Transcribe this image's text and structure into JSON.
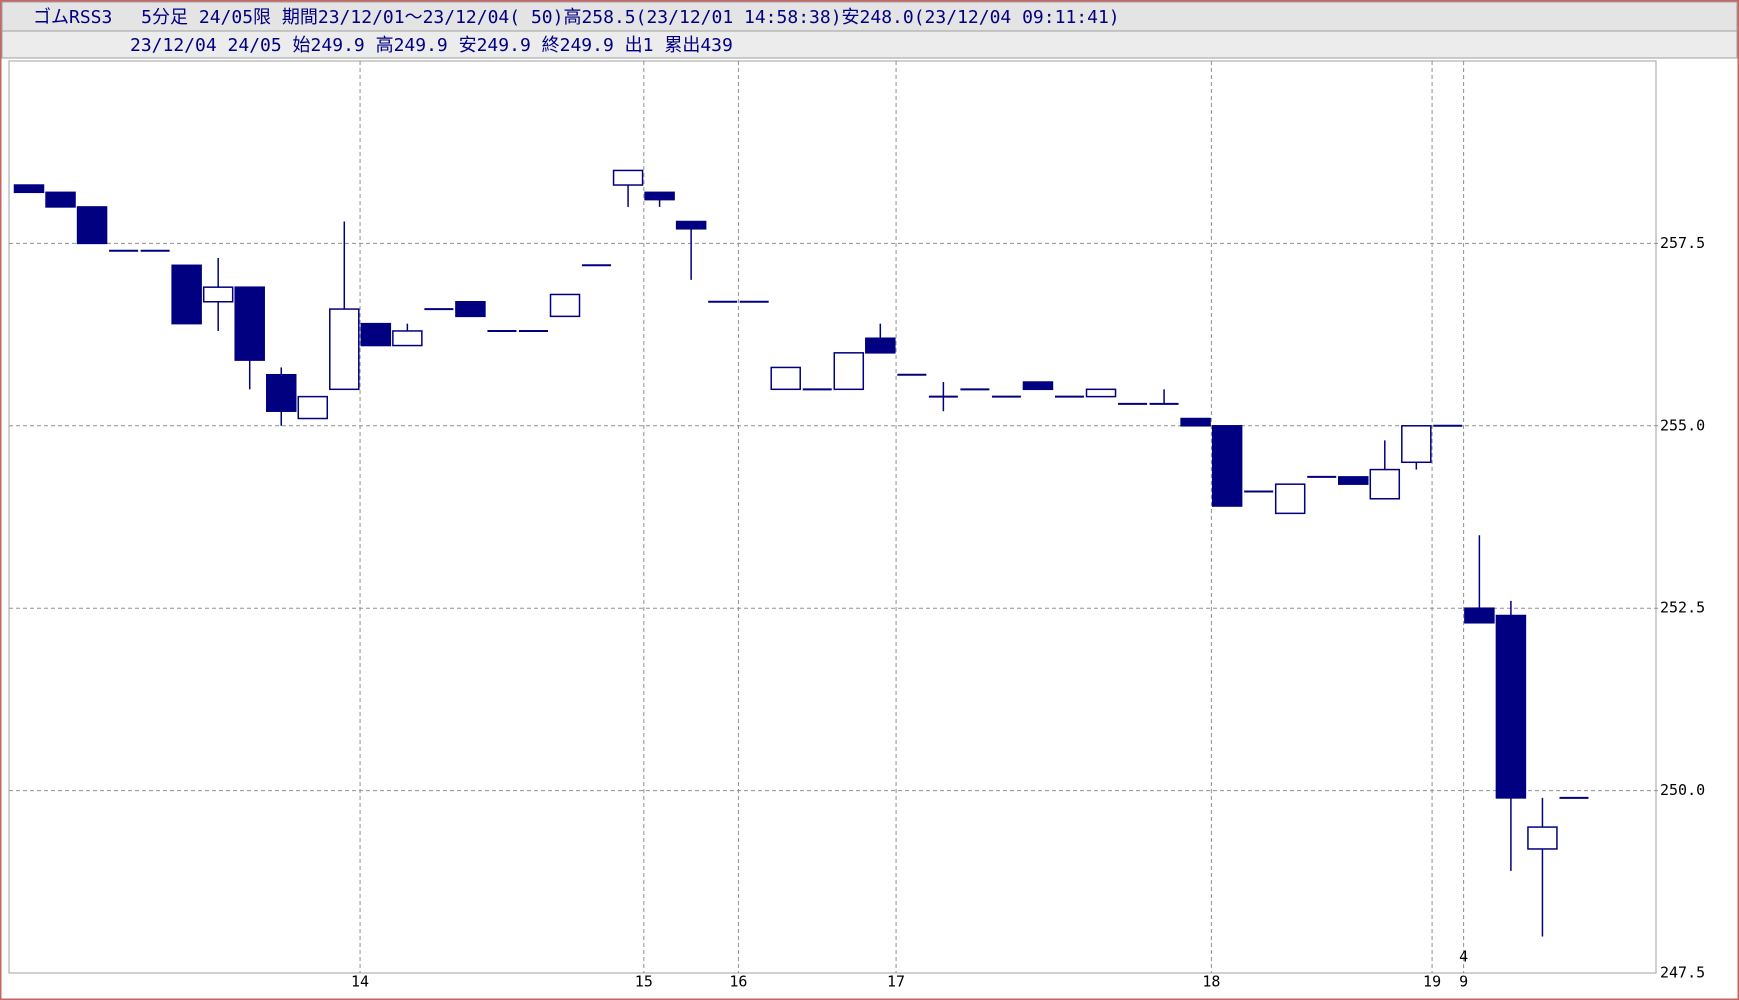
{
  "chart_data": {
    "type": "candlestick",
    "title": "ゴムRSS3　 5分足 24/05限 期間23/12/01～23/12/04( 50)高258.5(23/12/01 14:58:38)安248.0(23/12/04 09:11:41)",
    "subtitle": "23/12/04 24/05 始249.9 高249.9 安249.9 終249.9 出1 累出439",
    "categories": [
      null,
      null,
      null,
      null,
      null,
      null,
      null,
      null,
      null,
      null,
      null,
      "14",
      null,
      null,
      null,
      null,
      null,
      null,
      null,
      null,
      "15",
      null,
      null,
      "16",
      null,
      null,
      null,
      null,
      "17",
      null,
      null,
      null,
      null,
      null,
      null,
      null,
      null,
      null,
      "18",
      null,
      null,
      null,
      null,
      null,
      null,
      "19",
      "9",
      null,
      null,
      null
    ],
    "day_categories": [
      null,
      null,
      null,
      null,
      null,
      null,
      null,
      null,
      null,
      null,
      null,
      null,
      null,
      null,
      null,
      null,
      null,
      null,
      null,
      null,
      null,
      null,
      null,
      null,
      null,
      null,
      null,
      null,
      null,
      null,
      null,
      null,
      null,
      null,
      null,
      null,
      null,
      null,
      null,
      null,
      null,
      null,
      null,
      null,
      null,
      null,
      "4",
      null,
      null,
      null
    ],
    "open": [
      258.3,
      258.2,
      258.0,
      257.4,
      257.4,
      257.2,
      256.7,
      256.9,
      255.7,
      255.1,
      255.5,
      256.4,
      256.1,
      256.6,
      256.7,
      256.3,
      256.3,
      256.5,
      257.2,
      258.3,
      258.2,
      257.8,
      256.7,
      256.7,
      255.5,
      255.5,
      255.5,
      256.2,
      255.7,
      255.4,
      255.5,
      255.4,
      255.6,
      255.4,
      255.4,
      255.3,
      255.3,
      255.1,
      255.0,
      254.1,
      253.8,
      254.3,
      254.3,
      254.0,
      254.5,
      255.0,
      252.5,
      252.4,
      249.2,
      249.9
    ],
    "high": [
      258.3,
      258.2,
      258.0,
      257.4,
      257.4,
      257.2,
      257.3,
      256.9,
      255.8,
      255.4,
      257.8,
      256.4,
      256.4,
      256.6,
      256.7,
      256.3,
      256.3,
      256.8,
      257.2,
      258.5,
      258.2,
      257.8,
      256.7,
      256.7,
      255.8,
      255.5,
      256.0,
      256.4,
      255.7,
      255.6,
      255.5,
      255.4,
      255.6,
      255.4,
      255.5,
      255.3,
      255.5,
      255.1,
      255.0,
      254.1,
      254.2,
      254.3,
      254.3,
      254.8,
      255.0,
      255.0,
      253.5,
      252.6,
      249.9,
      249.9
    ],
    "low": [
      258.2,
      258.0,
      257.5,
      257.4,
      257.4,
      256.4,
      256.3,
      255.5,
      255.0,
      255.1,
      255.5,
      256.1,
      256.1,
      256.6,
      256.5,
      256.3,
      256.3,
      256.5,
      257.2,
      258.0,
      258.0,
      257.0,
      256.7,
      256.7,
      255.5,
      255.5,
      255.5,
      256.0,
      255.7,
      255.2,
      255.5,
      255.4,
      255.5,
      255.4,
      255.4,
      255.3,
      255.3,
      255.0,
      253.9,
      254.1,
      253.8,
      254.3,
      254.2,
      254.0,
      254.4,
      255.0,
      252.3,
      248.9,
      248.0,
      249.9
    ],
    "close": [
      258.2,
      258.0,
      257.5,
      257.4,
      257.4,
      256.4,
      256.9,
      255.9,
      255.2,
      255.4,
      256.6,
      256.1,
      256.3,
      256.6,
      256.5,
      256.3,
      256.3,
      256.8,
      257.2,
      258.5,
      258.1,
      257.7,
      256.7,
      256.7,
      255.8,
      255.5,
      256.0,
      256.0,
      255.7,
      255.4,
      255.5,
      255.4,
      255.5,
      255.4,
      255.5,
      255.3,
      255.3,
      255.0,
      253.9,
      254.1,
      254.2,
      254.3,
      254.2,
      254.4,
      255.0,
      255.0,
      252.3,
      249.9,
      249.5,
      249.9
    ],
    "ylim": [
      247.5,
      260
    ],
    "yticks": [
      247.5,
      {
        "value": 250,
        "label": "250.0"
      },
      252.5,
      {
        "value": 255,
        "label": "255.0"
      },
      257.5
    ],
    "grid": true,
    "up_color": "#ffffff",
    "down_color": "#000080",
    "line_color": "#000080"
  }
}
